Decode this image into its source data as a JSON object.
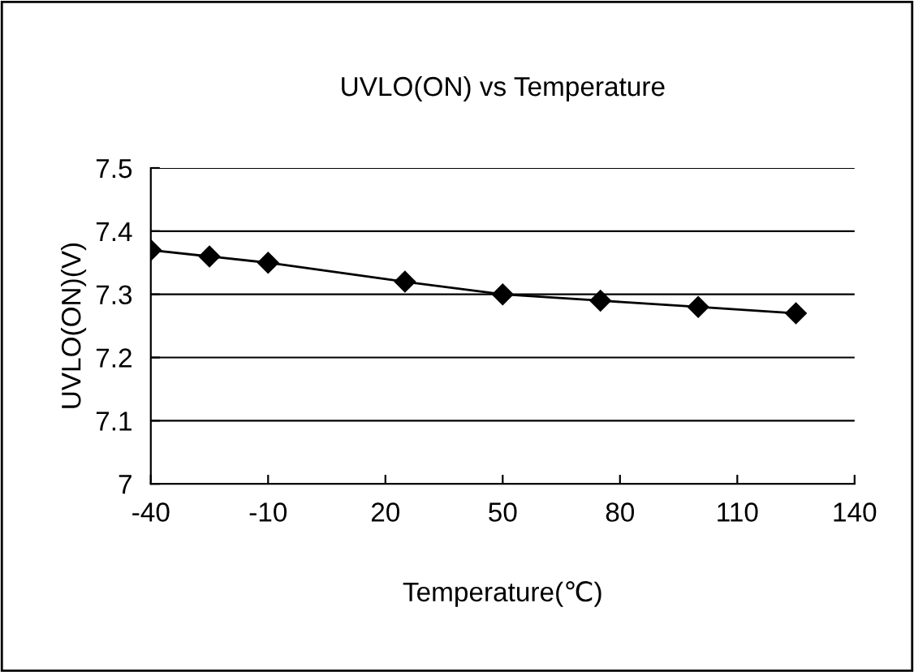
{
  "chart_data": {
    "type": "line",
    "title": "UVLO(ON) vs Temperature",
    "xlabel": "Temperature(℃)",
    "ylabel": "UVLO(ON)(V)",
    "x": [
      -40,
      -25,
      -10,
      25,
      50,
      75,
      100,
      125
    ],
    "series": [
      {
        "color": "#000000",
        "values": [
          7.37,
          7.36,
          7.35,
          7.32,
          7.3,
          7.29,
          7.28,
          7.27
        ]
      }
    ],
    "xlim": [
      -40,
      140
    ],
    "xticks": [
      -40,
      -10,
      20,
      50,
      80,
      110,
      140
    ],
    "ylim": [
      7,
      7.5
    ],
    "yticks": [
      {
        "value": 7,
        "label": "7"
      },
      7.1,
      7.2,
      7.3,
      7.4,
      7.5
    ],
    "grid": "y",
    "marker": "diamond",
    "line_style": "solid",
    "legend": false
  }
}
